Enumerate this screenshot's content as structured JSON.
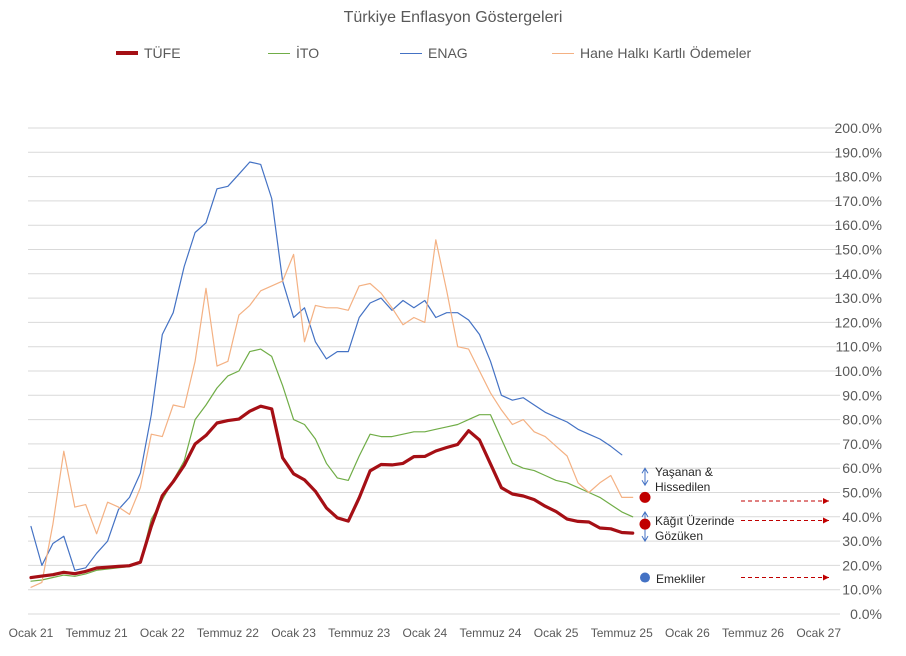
{
  "chart_data": {
    "type": "line",
    "title": "Türkiye Enflasyon Göstergeleri",
    "xlabel": "",
    "ylabel": "",
    "ylim": [
      0,
      200
    ],
    "y_tick_step": 10,
    "y_tick_format": "percent_1dp",
    "x_tick_labels": [
      "Ocak 21",
      "Temmuz 21",
      "Ocak 22",
      "Temmuz 22",
      "Ocak 23",
      "Temmuz 23",
      "Ocak 24",
      "Temmuz 24",
      "Ocak 25",
      "Temmuz 25",
      "Ocak 26",
      "Temmuz 26",
      "Ocak 27"
    ],
    "x_tick_months": [
      0,
      6,
      12,
      18,
      24,
      30,
      36,
      42,
      48,
      54,
      60,
      66,
      72
    ],
    "x_range_months": [
      0,
      72
    ],
    "grid": "horizontal",
    "legend_position": "top",
    "series": [
      {
        "name": "TÜFE",
        "color": "#A50F15",
        "width": "thick",
        "x": [
          0,
          1,
          2,
          3,
          4,
          5,
          6,
          7,
          8,
          9,
          10,
          11,
          12,
          13,
          14,
          15,
          16,
          17,
          18,
          19,
          20,
          21,
          22,
          23,
          24,
          25,
          26,
          27,
          28,
          29,
          30,
          31,
          32,
          33,
          34,
          35,
          36,
          37,
          38,
          39,
          40,
          41,
          42,
          43,
          44,
          45,
          46,
          47,
          48,
          49,
          50,
          51,
          52,
          53,
          54,
          55
        ],
        "values": [
          14.97,
          15.61,
          16.19,
          17.14,
          16.59,
          17.53,
          18.95,
          19.25,
          19.58,
          19.89,
          21.31,
          36.08,
          48.69,
          54.44,
          61.14,
          69.97,
          73.5,
          78.62,
          79.6,
          80.21,
          83.45,
          85.51,
          84.39,
          64.27,
          57.68,
          55.18,
          50.51,
          43.68,
          39.59,
          38.21,
          47.83,
          58.94,
          61.53,
          61.36,
          61.98,
          64.77,
          64.86,
          67.07,
          68.5,
          69.8,
          75.45,
          71.6,
          61.78,
          51.97,
          49.38,
          48.58,
          47.09,
          44.38,
          42.12,
          39.05,
          38.1,
          37.86,
          35.41,
          35.05,
          33.52,
          33.29
        ]
      },
      {
        "name": "İTO",
        "color": "#70AD47",
        "width": "thin",
        "x": [
          0,
          1,
          2,
          3,
          4,
          5,
          6,
          7,
          8,
          9,
          10,
          11,
          12,
          13,
          14,
          15,
          16,
          17,
          18,
          19,
          20,
          21,
          22,
          23,
          24,
          25,
          26,
          27,
          28,
          29,
          30,
          31,
          32,
          33,
          34,
          35,
          36,
          37,
          38,
          39,
          40,
          41,
          42,
          43,
          44,
          45,
          46,
          47,
          48,
          49,
          50,
          51,
          52,
          53,
          54,
          55
        ],
        "values": [
          13.5,
          14,
          15,
          16,
          15.5,
          16.5,
          18,
          18.5,
          19,
          19.5,
          21,
          39,
          47,
          55,
          63,
          80,
          86,
          93,
          98,
          100,
          108,
          109,
          106,
          94,
          80,
          78,
          72,
          62,
          56,
          55,
          65,
          74,
          73,
          73,
          74,
          75,
          75,
          76,
          77,
          78,
          80,
          82,
          82,
          72,
          62,
          60,
          59,
          57,
          55,
          54,
          52,
          50,
          48,
          45,
          42,
          40
        ]
      },
      {
        "name": "ENAG",
        "color": "#4472C4",
        "width": "thin",
        "x": [
          0,
          1,
          2,
          3,
          4,
          5,
          6,
          7,
          8,
          9,
          10,
          11,
          12,
          13,
          14,
          15,
          16,
          17,
          18,
          19,
          20,
          21,
          22,
          23,
          24,
          25,
          26,
          27,
          28,
          29,
          30,
          31,
          32,
          33,
          34,
          35,
          36,
          37,
          38,
          39,
          40,
          41,
          42,
          43,
          44,
          45,
          46,
          47,
          48,
          49,
          50,
          51,
          52,
          53,
          54
        ],
        "values": [
          36,
          20,
          29,
          32,
          18,
          19,
          25,
          30,
          43,
          48,
          58,
          82,
          115,
          124,
          143,
          157,
          161,
          175,
          176,
          181,
          186,
          185,
          171,
          137,
          122,
          126,
          112,
          105,
          108,
          108,
          122,
          128,
          130,
          125,
          129,
          126,
          129,
          122,
          124,
          124,
          121,
          115,
          104,
          90,
          88,
          89,
          86,
          83,
          81,
          79,
          76,
          74,
          72,
          69,
          65.5
        ]
      },
      {
        "name": "Hane Halkı Kartlı Ödemeler",
        "color": "#F4B183",
        "width": "thin",
        "x": [
          0,
          1,
          2,
          3,
          4,
          5,
          6,
          7,
          8,
          9,
          10,
          11,
          12,
          13,
          14,
          15,
          16,
          17,
          18,
          19,
          20,
          21,
          22,
          23,
          24,
          25,
          26,
          27,
          28,
          29,
          30,
          31,
          32,
          33,
          34,
          35,
          36,
          37,
          38,
          39,
          40,
          41,
          42,
          43,
          44,
          45,
          46,
          47,
          48,
          49,
          50,
          51,
          52,
          53,
          54,
          55
        ],
        "values": [
          11,
          13,
          37,
          67,
          44,
          45,
          33,
          46,
          44,
          41,
          52,
          74,
          73,
          86,
          85,
          104,
          134,
          102,
          104,
          123,
          127,
          133,
          135,
          137,
          148,
          112,
          127,
          126,
          126,
          125,
          135,
          136,
          132,
          126,
          119,
          122,
          120,
          154,
          133,
          110,
          109,
          100,
          91,
          84,
          78,
          80,
          75,
          73,
          69,
          65,
          54,
          50,
          54,
          57,
          48,
          48
        ]
      }
    ],
    "annotations": [
      {
        "label_line1": "Yaşanan &",
        "label_line2": "Hissedilen",
        "value": 48,
        "marker": "dark-red-dot",
        "arrow": "up-down",
        "band_from": 60,
        "band_to": 53
      },
      {
        "label_line1": "Kâğıt Üzerinde",
        "label_line2": "Gözüken",
        "value": 37,
        "marker": "dark-red-dot",
        "arrow": "up-down",
        "band_from": 42,
        "band_to": 30
      },
      {
        "label_line1": "Emekliler",
        "label_line2": "",
        "value": 15,
        "marker": "blue-dot",
        "arrow": "none"
      }
    ],
    "annotation_colors": {
      "red_marker": "#C00000",
      "blue_marker": "#4472C4",
      "arrow": "#4472C4",
      "dashed": "#C00000"
    }
  }
}
